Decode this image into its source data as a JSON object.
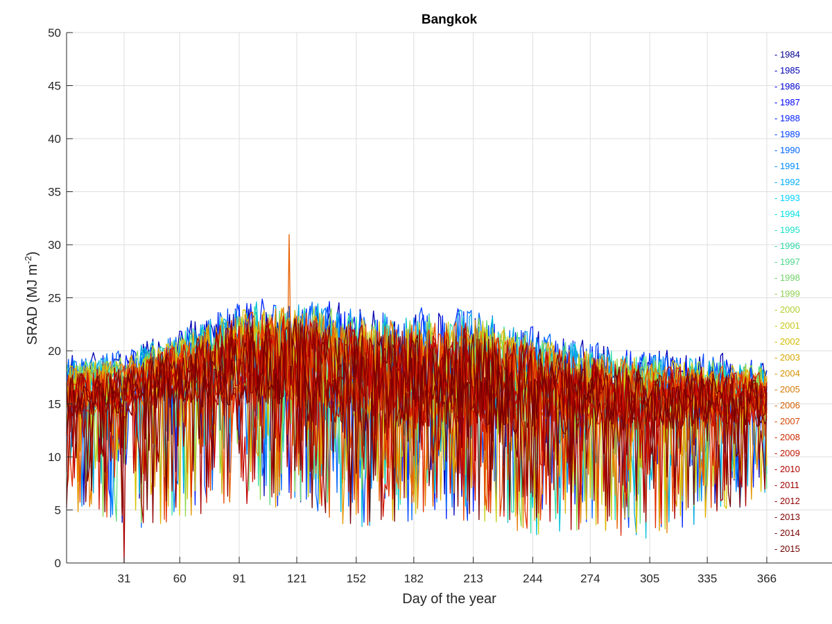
{
  "chart_data": {
    "type": "line",
    "title": "Bangkok",
    "xlabel": "Day of the year",
    "ylabel": "SRAD (MJ m",
    "ylabel_sup": "-2",
    "ylabel_close": ")",
    "xlim": [
      1,
      400
    ],
    "ylim": [
      0,
      50
    ],
    "xticks": [
      31,
      60,
      91,
      121,
      152,
      182,
      213,
      244,
      274,
      305,
      335,
      366
    ],
    "yticks": [
      0,
      5,
      10,
      15,
      20,
      25,
      30,
      35,
      40,
      45,
      50
    ],
    "grid": true,
    "legend_position": "right",
    "series_envelope": {
      "day": [
        1,
        31,
        60,
        91,
        121,
        152,
        182,
        213,
        244,
        274,
        305,
        335,
        366
      ],
      "upper": [
        21,
        22,
        24.5,
        28.5,
        29.5,
        28.5,
        28.5,
        29,
        25.5,
        24,
        22.5,
        22,
        21
      ],
      "typical": [
        16,
        16.5,
        18,
        19,
        18.5,
        17.5,
        17,
        17,
        16.5,
        16,
        15.5,
        15.5,
        15.5
      ],
      "lower": [
        5,
        3,
        4,
        5.5,
        5,
        3,
        4,
        4,
        2.5,
        3,
        2,
        4,
        6
      ]
    },
    "notable_points": [
      {
        "day": 31,
        "value": 0
      },
      {
        "day": 117,
        "value": 31
      }
    ],
    "series": [
      {
        "name": "1984",
        "color": "#00008f"
      },
      {
        "name": "1985",
        "color": "#0000b3"
      },
      {
        "name": "1986",
        "color": "#0000d6"
      },
      {
        "name": "1987",
        "color": "#0000fa"
      },
      {
        "name": "1988",
        "color": "#001fff"
      },
      {
        "name": "1989",
        "color": "#0042ff"
      },
      {
        "name": "1990",
        "color": "#0066ff"
      },
      {
        "name": "1991",
        "color": "#008aff"
      },
      {
        "name": "1992",
        "color": "#00adff"
      },
      {
        "name": "1993",
        "color": "#00d1ff"
      },
      {
        "name": "1994",
        "color": "#00f5ff"
      },
      {
        "name": "1995",
        "color": "#19ffe6"
      },
      {
        "name": "1996",
        "color": "#3dffc2"
      },
      {
        "name": "1997",
        "color": "#61ff9e"
      },
      {
        "name": "1998",
        "color": "#85ff7a"
      },
      {
        "name": "1999",
        "color": "#a8ff57"
      },
      {
        "name": "2000",
        "color": "#ccff33"
      },
      {
        "name": "2001",
        "color": "#f0ff0f"
      },
      {
        "name": "2002",
        "color": "#ffeb00"
      },
      {
        "name": "2003",
        "color": "#ffc700"
      },
      {
        "name": "2004",
        "color": "#ffa300"
      },
      {
        "name": "2005",
        "color": "#ff8000"
      },
      {
        "name": "2006",
        "color": "#ff5c00"
      },
      {
        "name": "2007",
        "color": "#ff3800"
      },
      {
        "name": "2008",
        "color": "#ff1400"
      },
      {
        "name": "2009",
        "color": "#f00000"
      },
      {
        "name": "2010",
        "color": "#cc0000"
      },
      {
        "name": "2011",
        "color": "#a80000"
      },
      {
        "name": "2012",
        "color": "#850000"
      },
      {
        "name": "2013",
        "color": "#800000"
      },
      {
        "name": "2014",
        "color": "#7a0000"
      },
      {
        "name": "2015",
        "color": "#750000"
      }
    ],
    "legend_text_colors": [
      "#00008f",
      "#0000b3",
      "#0000d6",
      "#0000fa",
      "#001fff",
      "#0042ff",
      "#0066ff",
      "#008aff",
      "#00adff",
      "#00d1ff",
      "#00e0e6",
      "#19e0c8",
      "#2fd9a8",
      "#4bd68a",
      "#6ed26a",
      "#8fd04f",
      "#b1cf2f",
      "#c8c81a",
      "#d4bb00",
      "#d4a600",
      "#d49000",
      "#d47800",
      "#d45f00",
      "#d44600",
      "#cc2c00",
      "#c01500",
      "#b00000",
      "#a00000",
      "#900000",
      "#800000",
      "#780000",
      "#700000"
    ],
    "line_colors": {
      "blue": [
        "#0000b3",
        "#0022ff",
        "#0044ff",
        "#0066ff",
        "#0088ff",
        "#00a8e0",
        "#00c0d8"
      ],
      "green": [
        "#35e0a8",
        "#62de7a",
        "#8fd84a"
      ],
      "yellow": [
        "#c8d21a",
        "#d8c300",
        "#e0b000",
        "#e49600"
      ],
      "orange": [
        "#e87a00",
        "#e86000",
        "#e84600",
        "#e02c00"
      ],
      "red": [
        "#d01400",
        "#c00000",
        "#a80000",
        "#900000",
        "#800000",
        "#700000"
      ]
    }
  }
}
